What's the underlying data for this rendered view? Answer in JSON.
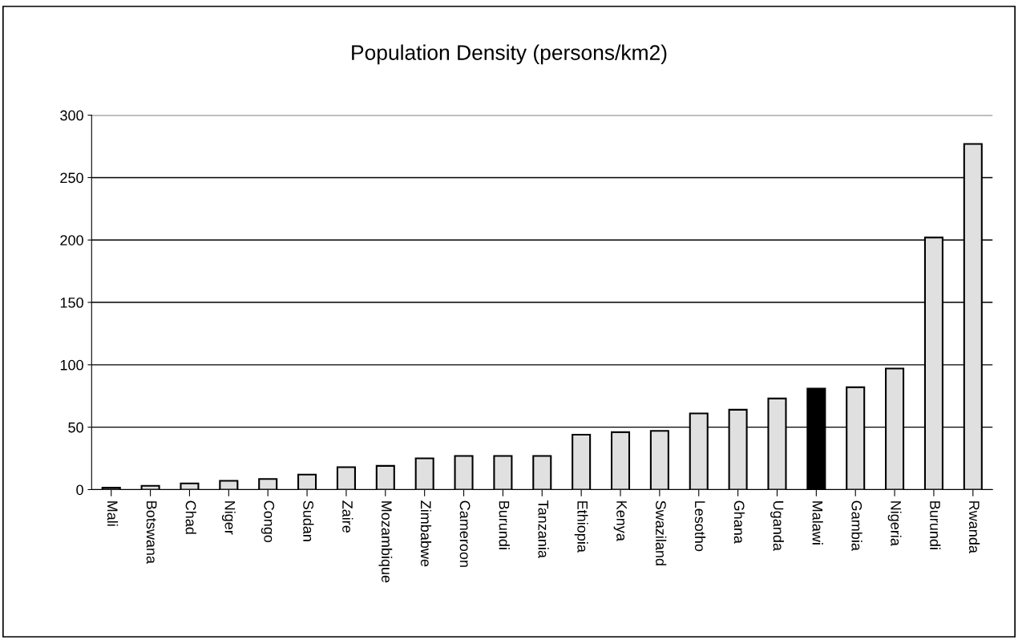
{
  "chart_data": {
    "type": "bar",
    "title": "Population Density (persons/km2)",
    "categories": [
      "Mali",
      "Botswana",
      "Chad",
      "Niger",
      "Congo",
      "Sudan",
      "Zaire",
      "Mozambique",
      "Zimbabwe",
      "Cameroon",
      "Burundi",
      "Tanzania",
      "Ethiopia",
      "Kenya",
      "Swaziland",
      "Lesotho",
      "Ghana",
      "Uganda",
      "Malawi",
      "Gambia",
      "Nigeria",
      "Burundi",
      "Rwanda"
    ],
    "values": [
      1.5,
      3,
      5,
      7,
      8.5,
      12,
      18,
      19,
      25,
      27,
      27,
      27,
      44,
      46,
      47,
      61,
      64,
      73,
      81,
      82,
      97,
      202,
      277
    ],
    "colors": [
      "#e0e0e0",
      "#e0e0e0",
      "#e0e0e0",
      "#e0e0e0",
      "#e0e0e0",
      "#e0e0e0",
      "#e0e0e0",
      "#e0e0e0",
      "#e0e0e0",
      "#e0e0e0",
      "#e0e0e0",
      "#e0e0e0",
      "#e0e0e0",
      "#e0e0e0",
      "#e0e0e0",
      "#e0e0e0",
      "#e0e0e0",
      "#e0e0e0",
      "#000000",
      "#e0e0e0",
      "#e0e0e0",
      "#e0e0e0",
      "#e0e0e0"
    ],
    "ylim": [
      0,
      300
    ],
    "yticks": [
      0,
      50,
      100,
      150,
      200,
      250,
      300
    ],
    "grid": "y",
    "legend": false
  }
}
